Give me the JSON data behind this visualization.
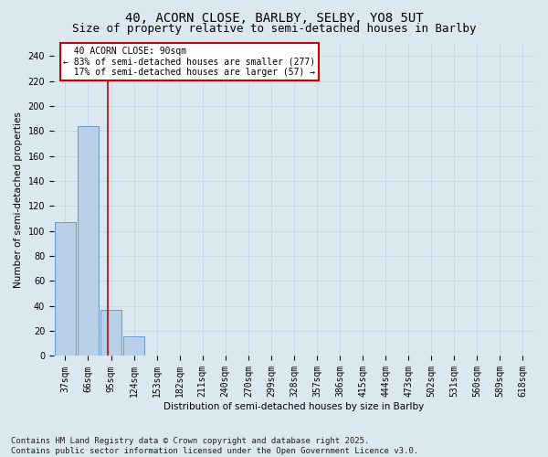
{
  "title_line1": "40, ACORN CLOSE, BARLBY, SELBY, YO8 5UT",
  "title_line2": "Size of property relative to semi-detached houses in Barlby",
  "xlabel": "Distribution of semi-detached houses by size in Barlby",
  "ylabel": "Number of semi-detached properties",
  "bar_labels": [
    "37sqm",
    "66sqm",
    "95sqm",
    "124sqm",
    "153sqm",
    "182sqm",
    "211sqm",
    "240sqm",
    "270sqm",
    "299sqm",
    "328sqm",
    "357sqm",
    "386sqm",
    "415sqm",
    "444sqm",
    "473sqm",
    "502sqm",
    "531sqm",
    "560sqm",
    "589sqm",
    "618sqm"
  ],
  "bar_values": [
    107,
    184,
    37,
    16,
    0,
    0,
    0,
    0,
    0,
    0,
    0,
    0,
    0,
    0,
    0,
    0,
    0,
    0,
    0,
    0,
    0
  ],
  "bar_color": "#b8cfe8",
  "bar_edgecolor": "#6699cc",
  "grid_color": "#c5d5e5",
  "property_line_x": 1.84,
  "property_line_color": "#cc0000",
  "annotation_text": "  40 ACORN CLOSE: 90sqm  \n← 83% of semi-detached houses are smaller (277)\n  17% of semi-detached houses are larger (57) →",
  "annotation_box_color": "#ffffff",
  "annotation_box_edgecolor": "#cc0000",
  "ylim": [
    0,
    250
  ],
  "yticks": [
    0,
    20,
    40,
    60,
    80,
    100,
    120,
    140,
    160,
    180,
    200,
    220,
    240
  ],
  "footnote": "Contains HM Land Registry data © Crown copyright and database right 2025.\nContains public sector information licensed under the Open Government Licence v3.0.",
  "bg_color": "#dce8f0",
  "plot_bg_color": "#dce8f0",
  "title_fontsize": 10,
  "subtitle_fontsize": 9,
  "footnote_fontsize": 6.5,
  "annotation_fontsize": 7,
  "axis_label_fontsize": 7.5,
  "tick_fontsize": 7
}
